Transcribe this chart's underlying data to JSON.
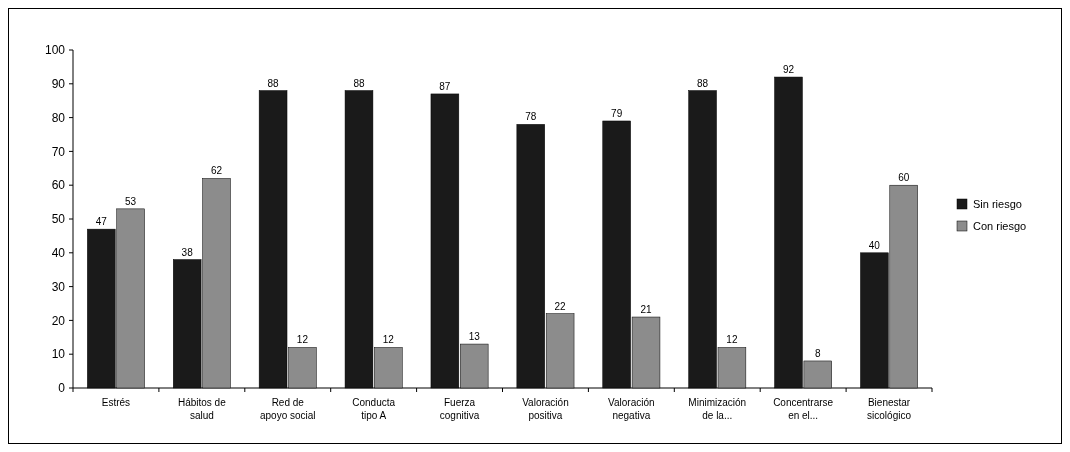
{
  "chart_data": {
    "type": "bar",
    "categories": [
      "Estrés",
      "Hábitos de\nsalud",
      "Red de\napoyo social",
      "Conducta\ntipo A",
      "Fuerza\ncognitiva",
      "Valoración\npositiva",
      "Valoración\nnegativa",
      "Minimización\nde la...",
      "Concentrarse\nen el...",
      "Bienestar\nsicológico"
    ],
    "series": [
      {
        "name": "Sin riesgo",
        "color": "#1a1a1a",
        "values": [
          47,
          38,
          88,
          88,
          87,
          78,
          79,
          88,
          92,
          40
        ]
      },
      {
        "name": "Con riesgo",
        "color": "#8c8c8c",
        "values": [
          53,
          62,
          12,
          12,
          13,
          22,
          21,
          12,
          8,
          60
        ]
      }
    ],
    "ylim": [
      0,
      100
    ],
    "yticks": [
      0,
      10,
      20,
      30,
      40,
      50,
      60,
      70,
      80,
      90,
      100
    ],
    "grid": false,
    "legend": "right",
    "data_labels": true
  }
}
